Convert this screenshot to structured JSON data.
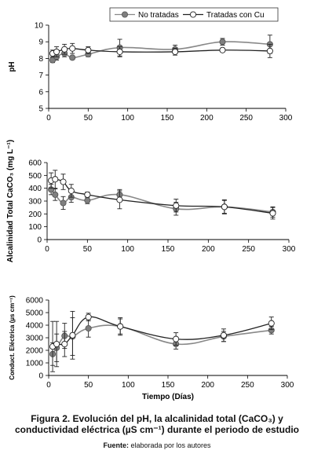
{
  "legend": [
    {
      "name": "No tratadas",
      "marker": "filled"
    },
    {
      "name": "Tratadas con Cu",
      "marker": "open"
    }
  ],
  "caption": {
    "line1": "Figura 2. Evolución del pH, la alcalinidad total (CaCO₃) y",
    "line2": "conductividad eléctrica (µS cm⁻¹) durante el periodo de estudio",
    "source_label": "Fuente:",
    "source_text": " elaborada por los autores"
  },
  "colors": {
    "no_tratadas_marker": "#7f7f7f",
    "no_tratadas_line": "#888888",
    "tratadas_line": "#222222",
    "error_bars": "#222222"
  },
  "chart_data": [
    {
      "type": "line",
      "ylabel": "pH",
      "xlabel": "",
      "xlim": [
        0,
        300
      ],
      "ylim": [
        5,
        10
      ],
      "xticks": [
        0,
        50,
        100,
        150,
        200,
        250,
        300
      ],
      "yticks": [
        5,
        6,
        7,
        8,
        9,
        10
      ],
      "series": [
        {
          "name": "No tratadas",
          "x": [
            5,
            10,
            20,
            30,
            50,
            90,
            160,
            220,
            280
          ],
          "y": [
            7.9,
            8.1,
            8.3,
            8.05,
            8.25,
            8.65,
            8.55,
            9.0,
            8.85
          ],
          "err": [
            0.15,
            0.2,
            0.2,
            0.1,
            0.15,
            0.5,
            0.25,
            0.2,
            0.55
          ]
        },
        {
          "name": "Tratadas con Cu",
          "x": [
            5,
            10,
            20,
            30,
            50,
            90,
            160,
            220,
            280
          ],
          "y": [
            8.3,
            8.4,
            8.55,
            8.6,
            8.5,
            8.4,
            8.4,
            8.5,
            8.45
          ],
          "err": [
            0.2,
            0.3,
            0.3,
            0.3,
            0.2,
            0.3,
            0.2,
            0.1,
            0.4
          ]
        }
      ]
    },
    {
      "type": "line",
      "ylabel": "Alcalinidad Total CaCO₃ (mg L⁻¹)",
      "xlabel": "",
      "xlim": [
        0,
        300
      ],
      "ylim": [
        0,
        600
      ],
      "xticks": [
        0,
        50,
        100,
        150,
        200,
        250,
        300
      ],
      "yticks": [
        0,
        100,
        200,
        300,
        400,
        500,
        600
      ],
      "series": [
        {
          "name": "No tratadas",
          "x": [
            5,
            10,
            20,
            30,
            50,
            90,
            160,
            220,
            280
          ],
          "y": [
            390,
            350,
            285,
            330,
            305,
            350,
            240,
            255,
            215
          ],
          "err": [
            40,
            45,
            50,
            40,
            25,
            40,
            50,
            55,
            40
          ]
        },
        {
          "name": "Tratadas con Cu",
          "x": [
            5,
            10,
            20,
            30,
            50,
            90,
            160,
            220,
            280
          ],
          "y": [
            460,
            470,
            450,
            380,
            350,
            310,
            265,
            255,
            205
          ],
          "err": [
            60,
            70,
            60,
            50,
            20,
            70,
            50,
            50,
            45
          ]
        }
      ]
    },
    {
      "type": "line",
      "ylabel": "Conduct. Eléctrica (µs cm⁻¹)",
      "xlabel": "Tiempo (Días)",
      "xlim": [
        0,
        300
      ],
      "ylim": [
        0,
        6000
      ],
      "xticks": [
        0,
        50,
        100,
        150,
        200,
        250,
        300
      ],
      "yticks": [
        0,
        1000,
        2000,
        3000,
        4000,
        5000,
        6000
      ],
      "series": [
        {
          "name": "No tratadas",
          "x": [
            5,
            10,
            20,
            30,
            50,
            90,
            160,
            220,
            280
          ],
          "y": [
            1700,
            2200,
            3150,
            3100,
            3750,
            3900,
            2500,
            3100,
            3600
          ],
          "err": [
            900,
            1100,
            1000,
            1500,
            700,
            600,
            400,
            400,
            300
          ]
        },
        {
          "name": "Tratadas con Cu",
          "x": [
            5,
            10,
            20,
            30,
            50,
            90,
            160,
            220,
            280
          ],
          "y": [
            2300,
            2500,
            2500,
            3200,
            4650,
            3900,
            2900,
            3200,
            4150
          ],
          "err": [
            2000,
            1800,
            1000,
            1900,
            300,
            700,
            500,
            500,
            500
          ]
        }
      ]
    }
  ]
}
